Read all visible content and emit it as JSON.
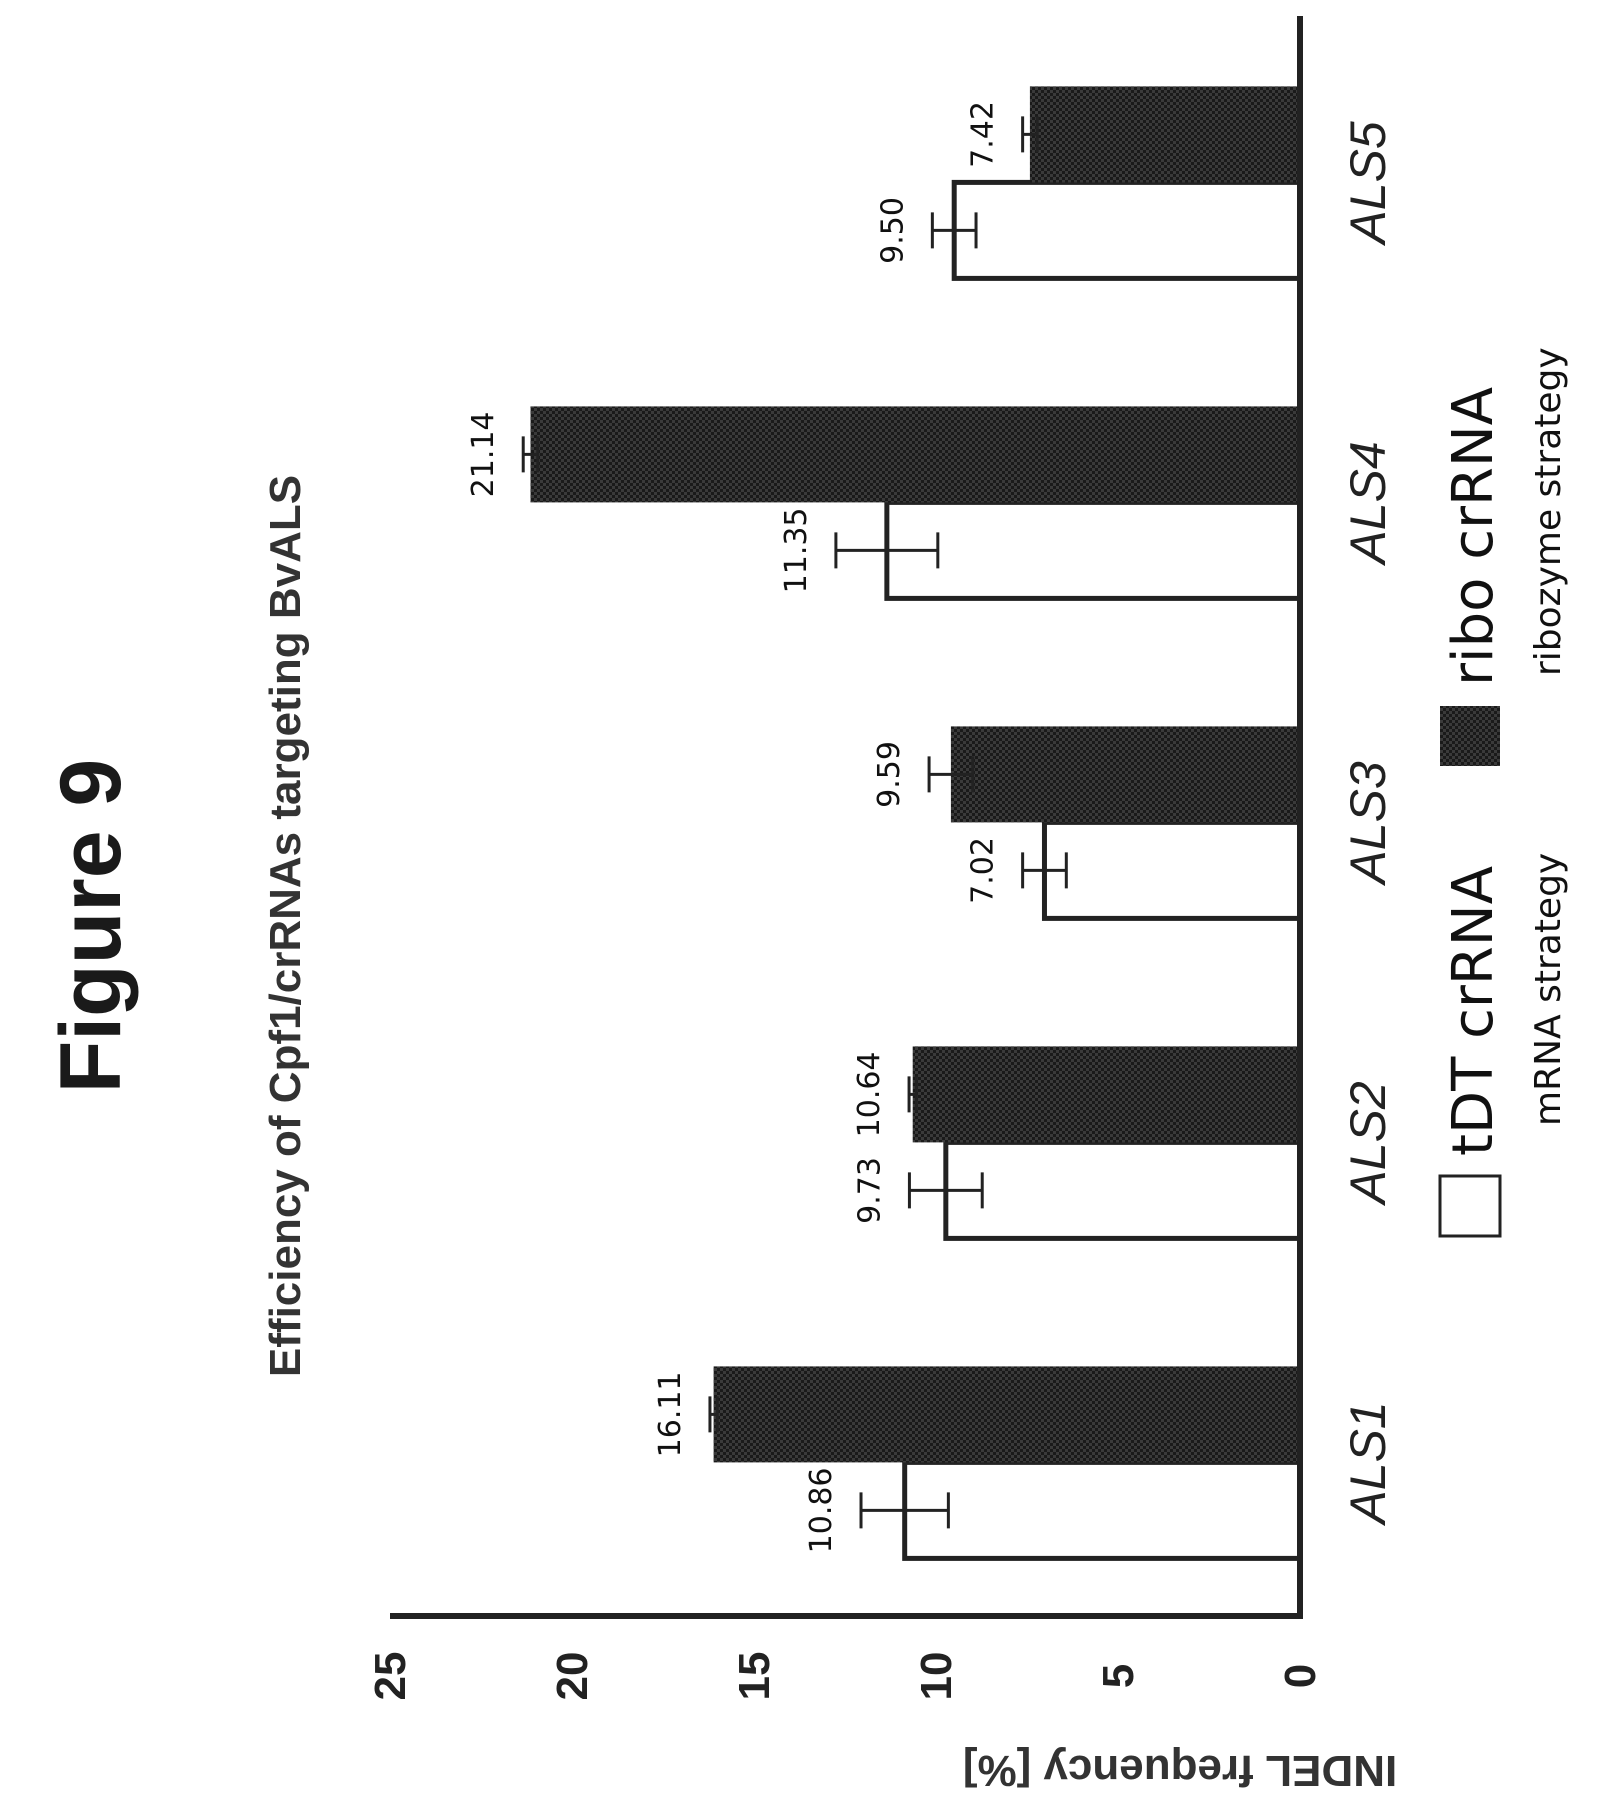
{
  "figure_label": "Figure 9",
  "colors": {
    "tdt_fill": "#ffffff",
    "ribo_fill": "#2b2b2b",
    "axis": "#222222"
  },
  "legend": {
    "items": [
      {
        "name": "tDT crRNA",
        "sub": "mRNA strategy"
      },
      {
        "name": "ribo crRNA",
        "sub": "ribozyme strategy"
      }
    ]
  },
  "chart_data": {
    "type": "bar",
    "title": "Efficiency of Cpf1/crRNAs targeting BvALS",
    "xlabel": "",
    "ylabel": "INDEL frequency [%]",
    "ylim": [
      0,
      25
    ],
    "yticks": [
      0,
      5,
      10,
      15,
      20,
      25
    ],
    "categories": [
      "ALS1",
      "ALS2",
      "ALS3",
      "ALS4",
      "ALS5"
    ],
    "series": [
      {
        "name": "tDT crRNA",
        "values": [
          10.86,
          9.73,
          7.02,
          11.35,
          9.5
        ],
        "errors": [
          1.2,
          1.0,
          0.6,
          1.4,
          0.6
        ]
      },
      {
        "name": "ribo crRNA",
        "values": [
          16.11,
          10.64,
          9.59,
          21.14,
          7.42
        ],
        "errors": [
          0.1,
          0.1,
          0.6,
          0.2,
          0.2
        ]
      }
    ],
    "grid": false,
    "legend_position": "bottom",
    "orientation": "figure rotated 90 degrees counter-clockwise"
  }
}
